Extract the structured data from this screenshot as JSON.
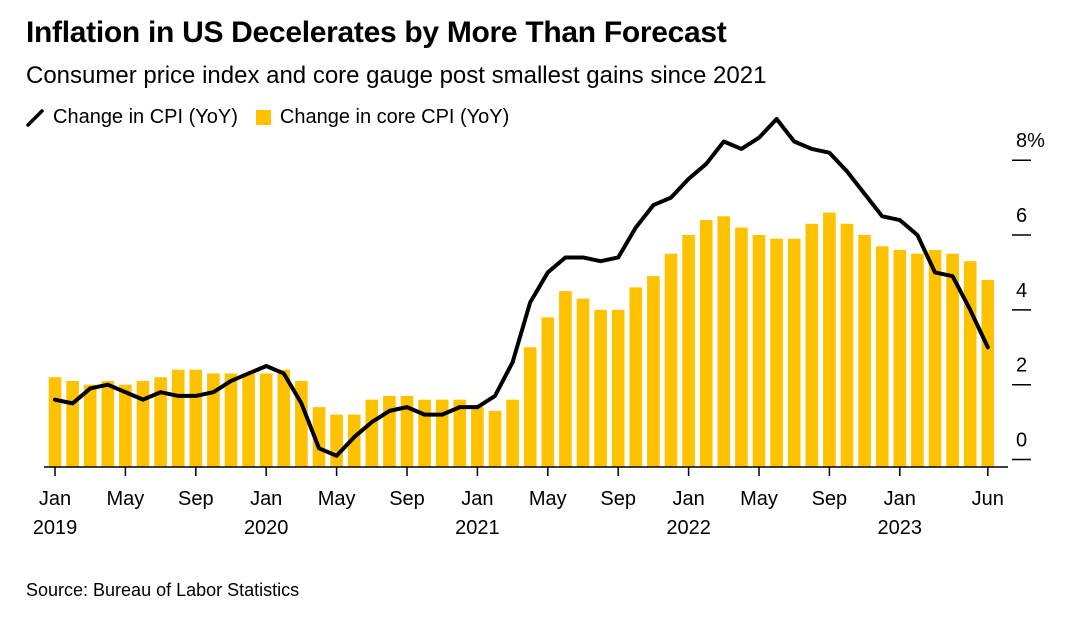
{
  "title": "Inflation in US Decelerates by More Than Forecast",
  "subtitle": "Consumer price index and core gauge post smallest gains since 2021",
  "source": "Source: Bureau of Labor Statistics",
  "colors": {
    "line": "#000000",
    "bar": "#ffc200",
    "axis": "#000000"
  },
  "chart_data": {
    "type": "bar",
    "legend": {
      "position": "top-left",
      "entries": [
        {
          "name": "Change in CPI (YoY)",
          "icon": "line-swatch-icon"
        },
        {
          "name": "Change in core CPI (YoY)",
          "icon": "square-swatch-icon"
        }
      ]
    },
    "ylim": [
      -0.2,
      8.7
    ],
    "yticks": [
      {
        "value": 0,
        "label": "0"
      },
      {
        "value": 2,
        "label": "2"
      },
      {
        "value": 4,
        "label": "4"
      },
      {
        "value": 6,
        "label": "6"
      },
      {
        "value": 8,
        "label": "8%"
      }
    ],
    "xticks": [
      {
        "index": 0,
        "label": "Jan",
        "year": "2019"
      },
      {
        "index": 4,
        "label": "May",
        "year": ""
      },
      {
        "index": 8,
        "label": "Sep",
        "year": ""
      },
      {
        "index": 12,
        "label": "Jan",
        "year": "2020"
      },
      {
        "index": 16,
        "label": "May",
        "year": ""
      },
      {
        "index": 20,
        "label": "Sep",
        "year": ""
      },
      {
        "index": 24,
        "label": "Jan",
        "year": "2021"
      },
      {
        "index": 28,
        "label": "May",
        "year": ""
      },
      {
        "index": 32,
        "label": "Sep",
        "year": ""
      },
      {
        "index": 36,
        "label": "Jan",
        "year": "2022"
      },
      {
        "index": 40,
        "label": "May",
        "year": ""
      },
      {
        "index": 44,
        "label": "Sep",
        "year": ""
      },
      {
        "index": 48,
        "label": "Jan",
        "year": "2023"
      },
      {
        "index": 53,
        "label": "Jun",
        "year": ""
      }
    ],
    "months": [
      "2019-01",
      "2019-02",
      "2019-03",
      "2019-04",
      "2019-05",
      "2019-06",
      "2019-07",
      "2019-08",
      "2019-09",
      "2019-10",
      "2019-11",
      "2019-12",
      "2020-01",
      "2020-02",
      "2020-03",
      "2020-04",
      "2020-05",
      "2020-06",
      "2020-07",
      "2020-08",
      "2020-09",
      "2020-10",
      "2020-11",
      "2020-12",
      "2021-01",
      "2021-02",
      "2021-03",
      "2021-04",
      "2021-05",
      "2021-06",
      "2021-07",
      "2021-08",
      "2021-09",
      "2021-10",
      "2021-11",
      "2021-12",
      "2022-01",
      "2022-02",
      "2022-03",
      "2022-04",
      "2022-05",
      "2022-06",
      "2022-07",
      "2022-08",
      "2022-09",
      "2022-10",
      "2022-11",
      "2022-12",
      "2023-01",
      "2023-02",
      "2023-03",
      "2023-04",
      "2023-05",
      "2023-06"
    ],
    "series": [
      {
        "name": "Change in core CPI (YoY)",
        "kind": "bar",
        "values": [
          2.2,
          2.1,
          2.0,
          2.1,
          2.0,
          2.1,
          2.2,
          2.4,
          2.4,
          2.3,
          2.3,
          2.3,
          2.3,
          2.4,
          2.1,
          1.4,
          1.2,
          1.2,
          1.6,
          1.7,
          1.7,
          1.6,
          1.6,
          1.6,
          1.4,
          1.3,
          1.6,
          3.0,
          3.8,
          4.5,
          4.3,
          4.0,
          4.0,
          4.6,
          4.9,
          5.5,
          6.0,
          6.4,
          6.5,
          6.2,
          6.0,
          5.9,
          5.9,
          6.3,
          6.6,
          6.3,
          6.0,
          5.7,
          5.6,
          5.5,
          5.6,
          5.5,
          5.3,
          4.8
        ]
      },
      {
        "name": "Change in CPI (YoY)",
        "kind": "line",
        "values": [
          1.6,
          1.5,
          1.9,
          2.0,
          1.8,
          1.6,
          1.8,
          1.7,
          1.7,
          1.8,
          2.1,
          2.3,
          2.5,
          2.3,
          1.5,
          0.3,
          0.1,
          0.6,
          1.0,
          1.3,
          1.4,
          1.2,
          1.2,
          1.4,
          1.4,
          1.7,
          2.6,
          4.2,
          5.0,
          5.4,
          5.4,
          5.3,
          5.4,
          6.2,
          6.8,
          7.0,
          7.5,
          7.9,
          8.5,
          8.3,
          8.6,
          9.1,
          8.5,
          8.3,
          8.2,
          7.7,
          7.1,
          6.5,
          6.4,
          6.0,
          5.0,
          4.9,
          4.0,
          3.0
        ]
      }
    ]
  }
}
